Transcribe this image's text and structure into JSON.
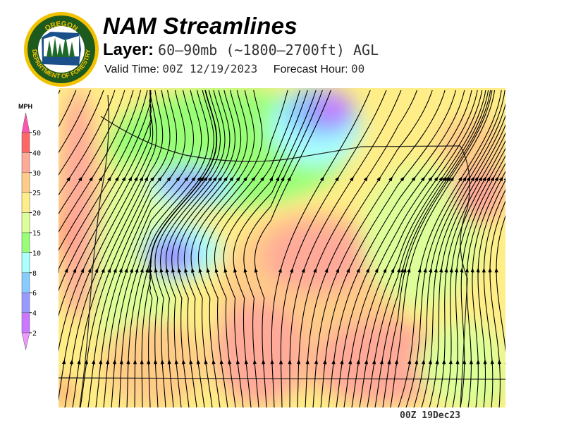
{
  "header": {
    "title": "NAM Streamlines",
    "layer_label": "Layer:",
    "layer_value": "60–90mb (~1800–2700ft) AGL",
    "valid_label": "Valid Time:",
    "valid_value": "00Z 12/19/2023",
    "forecast_label": "Forecast Hour:",
    "forecast_value": "00"
  },
  "logo": {
    "text_top": "OREGON",
    "text_bottom": "DEPARTMENT OF FORESTRY"
  },
  "legend": {
    "unit": "MPH",
    "ticks": [
      "50",
      "40",
      "30",
      "25",
      "20",
      "15",
      "10",
      "8",
      "6",
      "4",
      "2"
    ],
    "colors": [
      "#ff55b0",
      "#ff6666",
      "#ffaa99",
      "#ffcc88",
      "#ffee88",
      "#ddff99",
      "#99ff77",
      "#aaffff",
      "#88ccff",
      "#9999ff",
      "#cc77ff",
      "#ee99ff"
    ]
  },
  "footer": {
    "stamp": "00Z 19Dec23"
  }
}
